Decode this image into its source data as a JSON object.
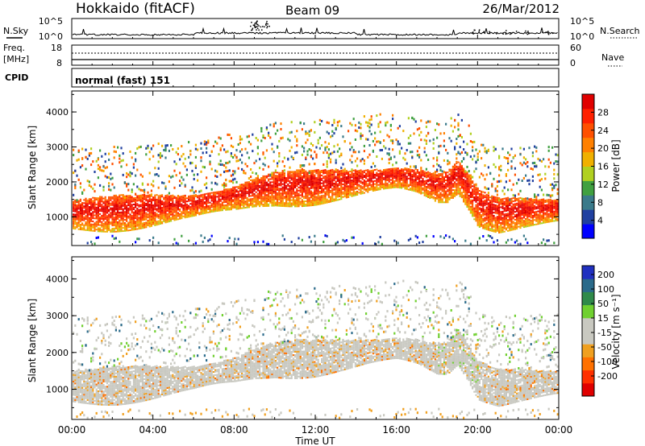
{
  "header": {
    "station": "Hokkaido (fitACF)",
    "beam": "Beam 09",
    "date": "26/Mar/2012"
  },
  "noise_panel": {
    "left_label": "N.Sky",
    "right_label": "N.Search",
    "ticks_left": [
      "10^5",
      "10^0"
    ],
    "ticks_right": [
      "10^5",
      "10^0"
    ]
  },
  "freq_panel": {
    "left_label_1": "Freq.",
    "left_label_2": "[MHz]",
    "ticks_left": [
      "18",
      "8"
    ],
    "ticks_right": [
      "60",
      "0"
    ],
    "right_label": "Nave"
  },
  "cpid_panel": {
    "left_label": "CPID",
    "mode_text": "normal (fast) 151"
  },
  "colors": {
    "power_scale": [
      "#0000ff",
      "#2040a0",
      "#3a7a8a",
      "#40a040",
      "#b0d020",
      "#f0b000",
      "#ff8000",
      "#ff5000",
      "#ff2000",
      "#e00000"
    ],
    "velocity_scale": [
      "#2030c0",
      "#2a6a8a",
      "#2f8a4a",
      "#70d030",
      "#c8c8c0",
      "#c8c8c0",
      "#f0a020",
      "#ff7000",
      "#ff3000",
      "#e00000"
    ]
  },
  "chart_data": [
    {
      "type": "heatmap",
      "title": "",
      "xlabel": "",
      "ylabel": "Slant Range [km]",
      "x_ticks": [
        "00:00",
        "04:00",
        "08:00",
        "12:00",
        "16:00",
        "20:00",
        "00:00"
      ],
      "xlim": [
        0,
        24
      ],
      "y_ticks": [
        "1000",
        "2000",
        "3000",
        "4000"
      ],
      "ylim": [
        180,
        4600
      ],
      "colorbar_label": "Power [dB]",
      "colorbar_ticks": [
        "4",
        "8",
        "12",
        "16",
        "20",
        "24",
        "28"
      ],
      "main_echo_band": {
        "x_hours": [
          0,
          2,
          4,
          6,
          8,
          9,
          10,
          12,
          14,
          16,
          17,
          18,
          18.5,
          19,
          19.5,
          20,
          21,
          22,
          24
        ],
        "center_km": [
          1150,
          1200,
          1280,
          1380,
          1600,
          1780,
          1900,
          1950,
          2050,
          2180,
          2100,
          1900,
          1950,
          2250,
          1850,
          1350,
          1150,
          1200,
          1250
        ]
      }
    },
    {
      "type": "heatmap",
      "title": "",
      "xlabel": "Time UT",
      "ylabel": "Slant Range [km]",
      "x_ticks": [
        "00:00",
        "04:00",
        "08:00",
        "12:00",
        "16:00",
        "20:00",
        "00:00"
      ],
      "xlim": [
        0,
        24
      ],
      "y_ticks": [
        "1000",
        "2000",
        "3000",
        "4000"
      ],
      "ylim": [
        180,
        4600
      ],
      "colorbar_label": "Velocity [m s⁻¹]",
      "colorbar_ticks": [
        "200",
        "100",
        "50",
        "15",
        "-15",
        "-50",
        "-100",
        "-200"
      ],
      "main_echo_band": {
        "x_hours": [
          0,
          2,
          4,
          6,
          8,
          9,
          10,
          12,
          14,
          16,
          17,
          18,
          18.5,
          19,
          19.5,
          20,
          21,
          22,
          24
        ],
        "center_km": [
          1150,
          1200,
          1280,
          1380,
          1600,
          1780,
          1900,
          1950,
          2050,
          2180,
          2100,
          1900,
          1950,
          2250,
          1850,
          1350,
          1150,
          1200,
          1250
        ]
      }
    }
  ]
}
